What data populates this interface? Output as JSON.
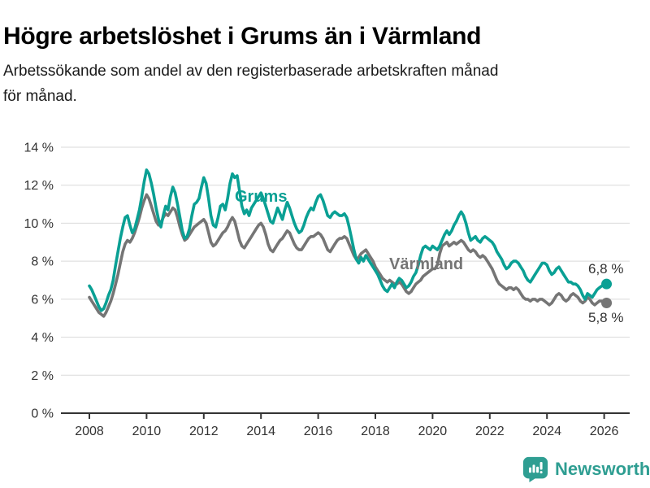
{
  "header": {
    "title": "Högre arbetslöshet i Grums än i Värmland",
    "subtitle_lines": [
      "Arbetssökande som andel av den registerbaserade arbetskraften månad",
      "för månad."
    ]
  },
  "chart_data": {
    "type": "line",
    "x_unit": "month",
    "x_start": "2008-01",
    "x_end": "2026-02",
    "x_ticks": [
      2008,
      2010,
      2012,
      2014,
      2016,
      2018,
      2020,
      2022,
      2024,
      2026
    ],
    "y_ticks": [
      "0 %",
      "2 %",
      "4 %",
      "6 %",
      "8 %",
      "10 %",
      "12 %",
      "14 %"
    ],
    "ylim": [
      0,
      14
    ],
    "grid": "horizontal",
    "axis_color": "#333333",
    "grid_color": "#d9d9d9",
    "series": [
      {
        "name": "Grums",
        "color": "#0aa094",
        "values": [
          6.7,
          6.5,
          6.2,
          5.9,
          5.6,
          5.4,
          5.5,
          5.8,
          6.2,
          6.5,
          7.0,
          7.8,
          8.5,
          9.2,
          9.8,
          10.3,
          10.4,
          9.9,
          9.5,
          9.7,
          10.2,
          10.7,
          11.4,
          12.2,
          12.8,
          12.6,
          12.1,
          11.5,
          10.8,
          10.2,
          9.8,
          10.4,
          10.9,
          10.7,
          11.4,
          11.9,
          11.6,
          11.0,
          10.3,
          9.6,
          9.2,
          9.3,
          9.7,
          10.4,
          11.0,
          11.1,
          11.3,
          11.9,
          12.4,
          12.1,
          11.3,
          10.4,
          9.9,
          9.8,
          10.3,
          10.9,
          11.0,
          10.7,
          11.3,
          12.1,
          12.6,
          12.4,
          12.5,
          11.7,
          10.9,
          10.5,
          10.7,
          10.4,
          10.8,
          11.0,
          11.2,
          11.4,
          11.6,
          11.3,
          10.9,
          10.5,
          10.1,
          10.0,
          10.4,
          10.8,
          10.5,
          10.2,
          10.7,
          11.1,
          10.8,
          10.4,
          10.0,
          9.7,
          9.5,
          9.6,
          9.9,
          10.3,
          10.6,
          10.8,
          10.7,
          11.1,
          11.4,
          11.5,
          11.2,
          10.8,
          10.4,
          10.3,
          10.5,
          10.6,
          10.5,
          10.4,
          10.4,
          10.5,
          10.3,
          9.8,
          9.2,
          8.6,
          8.1,
          7.9,
          8.2,
          8.0,
          8.3,
          8.1,
          7.9,
          7.7,
          7.5,
          7.3,
          7.0,
          6.7,
          6.5,
          6.4,
          6.6,
          6.8,
          6.6,
          6.9,
          7.1,
          7.0,
          6.8,
          6.6,
          6.7,
          6.9,
          7.2,
          7.4,
          7.8,
          8.3,
          8.7,
          8.8,
          8.7,
          8.6,
          8.8,
          8.7,
          8.6,
          8.8,
          9.1,
          9.4,
          9.6,
          9.4,
          9.6,
          9.9,
          10.1,
          10.4,
          10.6,
          10.4,
          10.0,
          9.5,
          9.1,
          9.2,
          9.3,
          9.1,
          9.0,
          9.2,
          9.3,
          9.2,
          9.1,
          9.0,
          8.8,
          8.5,
          8.3,
          8.1,
          7.8,
          7.6,
          7.7,
          7.9,
          8.0,
          8.0,
          7.9,
          7.7,
          7.5,
          7.2,
          7.0,
          6.9,
          7.1,
          7.3,
          7.5,
          7.7,
          7.9,
          7.9,
          7.8,
          7.5,
          7.3,
          7.4,
          7.6,
          7.7,
          7.5,
          7.3,
          7.1,
          6.9,
          6.9,
          6.8,
          6.8,
          6.7,
          6.5,
          6.2,
          6.0,
          6.3,
          6.2,
          6.1,
          6.3,
          6.5,
          6.6,
          6.7,
          6.7,
          6.8
        ]
      },
      {
        "name": "Värmland",
        "color": "#757575",
        "values": [
          6.1,
          5.9,
          5.7,
          5.5,
          5.3,
          5.2,
          5.1,
          5.3,
          5.6,
          5.9,
          6.3,
          6.8,
          7.3,
          7.9,
          8.5,
          8.9,
          9.1,
          9.0,
          9.2,
          9.5,
          9.9,
          10.3,
          10.8,
          11.2,
          11.5,
          11.3,
          10.9,
          10.5,
          10.1,
          9.9,
          10.0,
          10.3,
          10.5,
          10.4,
          10.6,
          10.8,
          10.7,
          10.3,
          9.8,
          9.4,
          9.1,
          9.2,
          9.4,
          9.6,
          9.8,
          9.9,
          10.0,
          10.1,
          10.2,
          10.0,
          9.5,
          9.0,
          8.8,
          8.9,
          9.1,
          9.3,
          9.5,
          9.6,
          9.8,
          10.1,
          10.3,
          10.1,
          9.6,
          9.1,
          8.8,
          8.7,
          8.9,
          9.1,
          9.3,
          9.5,
          9.7,
          9.9,
          10.0,
          9.8,
          9.4,
          8.9,
          8.6,
          8.5,
          8.7,
          8.9,
          9.1,
          9.2,
          9.4,
          9.6,
          9.5,
          9.2,
          8.9,
          8.7,
          8.6,
          8.6,
          8.8,
          9.0,
          9.2,
          9.3,
          9.3,
          9.4,
          9.5,
          9.4,
          9.2,
          8.9,
          8.6,
          8.5,
          8.7,
          8.9,
          9.1,
          9.2,
          9.2,
          9.3,
          9.2,
          8.9,
          8.6,
          8.3,
          8.1,
          8.2,
          8.4,
          8.5,
          8.6,
          8.4,
          8.2,
          8.0,
          7.7,
          7.5,
          7.3,
          7.1,
          7.0,
          6.9,
          7.0,
          6.9,
          6.8,
          6.8,
          6.9,
          6.8,
          6.6,
          6.4,
          6.3,
          6.4,
          6.6,
          6.8,
          6.9,
          7.0,
          7.2,
          7.3,
          7.4,
          7.5,
          7.6,
          7.6,
          7.8,
          8.4,
          8.8,
          8.9,
          9.0,
          8.8,
          8.9,
          9.0,
          8.9,
          9.0,
          9.1,
          9.0,
          8.8,
          8.6,
          8.5,
          8.6,
          8.5,
          8.3,
          8.2,
          8.3,
          8.2,
          8.0,
          7.8,
          7.6,
          7.3,
          7.0,
          6.8,
          6.7,
          6.6,
          6.5,
          6.6,
          6.6,
          6.5,
          6.6,
          6.5,
          6.3,
          6.1,
          6.0,
          6.0,
          5.9,
          6.0,
          6.0,
          5.9,
          6.0,
          6.0,
          5.9,
          5.8,
          5.7,
          5.8,
          6.0,
          6.2,
          6.3,
          6.2,
          6.0,
          5.9,
          6.0,
          6.2,
          6.3,
          6.2,
          6.1,
          5.9,
          5.8,
          5.9,
          6.1,
          6.0,
          5.8,
          5.7,
          5.8,
          5.9,
          5.9,
          5.8,
          5.8
        ]
      }
    ],
    "end_labels": [
      {
        "series": "Grums",
        "text": "6,8 %"
      },
      {
        "series": "Värmland",
        "text": "5,8 %"
      }
    ]
  },
  "footer": {
    "brand": "Newsworthy",
    "brand_color": "#2f9e92"
  }
}
